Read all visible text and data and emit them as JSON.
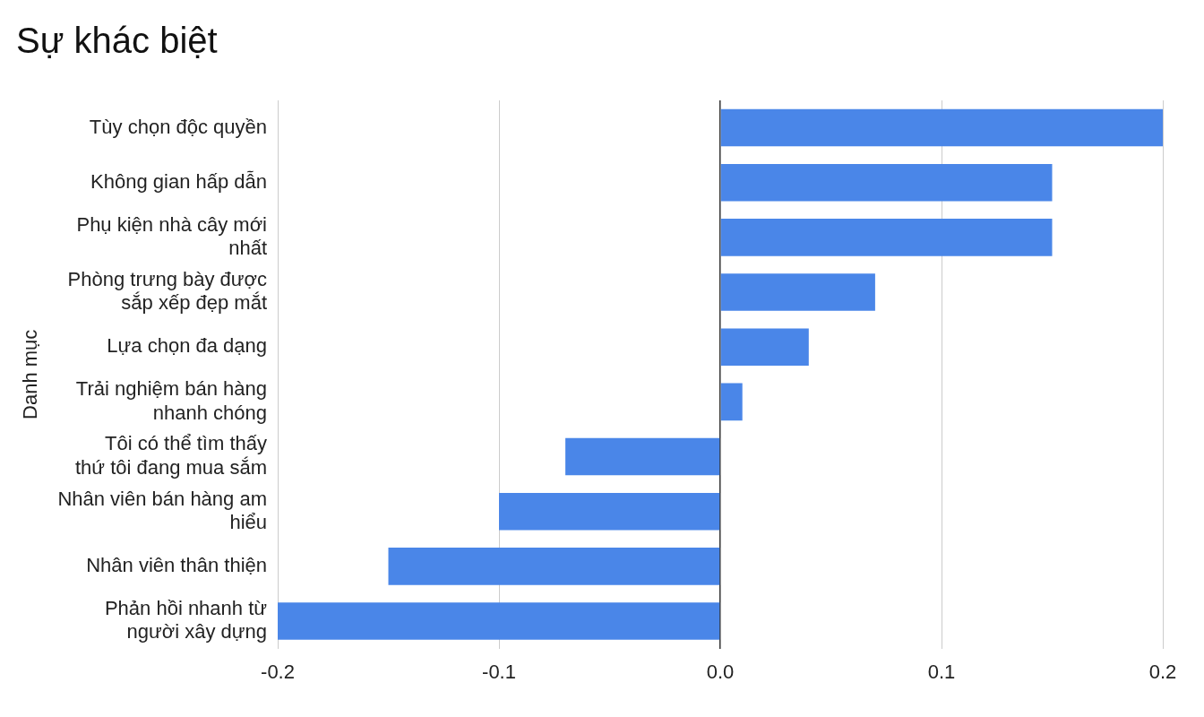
{
  "chart_data": {
    "type": "bar",
    "orientation": "horizontal",
    "title": "Sự khác biệt",
    "ylabel": "Danh mục",
    "categories": [
      "Tùy chọn độc quyền",
      "Không gian hấp dẫn",
      "Phụ kiện nhà cây mới nhất",
      "Phòng trưng bày được sắp xếp đẹp mắt",
      "Lựa chọn đa dạng",
      "Trải nghiệm bán hàng nhanh chóng",
      "Tôi có thể tìm thấy thứ tôi đang mua sắm",
      "Nhân viên bán hàng am hiểu",
      "Nhân viên thân thiện",
      "Phản hồi nhanh từ người xây dựng"
    ],
    "values": [
      0.2,
      0.15,
      0.15,
      0.07,
      0.04,
      0.01,
      -0.07,
      -0.1,
      -0.15,
      -0.2
    ],
    "color": "#4a86e8",
    "xlim": [
      -0.2,
      0.2
    ],
    "xticks": [
      -0.2,
      -0.1,
      {
        "value": 0,
        "label": "0.0"
      },
      0.1,
      0.2
    ],
    "grid": "x",
    "legend": false
  }
}
